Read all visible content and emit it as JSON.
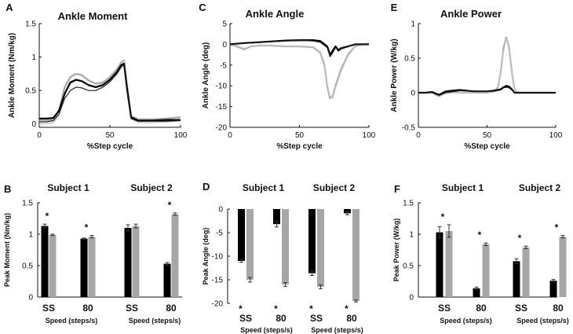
{
  "colors": {
    "black": "#000000",
    "gray": "#a6a6a6",
    "gray_light": "#c8c8c8",
    "dark": "#222222"
  },
  "chart_data": [
    {
      "panel": "A",
      "type": "line",
      "title": "Ankle Moment",
      "xlabel": "%Step cycle",
      "ylabel": "Ankle Moment (Nm/kg)",
      "xlim": [
        0,
        100
      ],
      "ylim": [
        -0.05,
        1.5
      ],
      "xticks": [
        "0",
        "50",
        "100"
      ],
      "yticks": [
        "0",
        "0.5",
        "1",
        "1.5"
      ],
      "xtick_values": [
        0,
        50,
        100
      ],
      "ytick_values": [
        0,
        0.5,
        1,
        1.5
      ],
      "series": [
        {
          "name": "s1_gray",
          "x": [
            0,
            5,
            10,
            14,
            18,
            22,
            26,
            30,
            35,
            40,
            45,
            50,
            55,
            58,
            60,
            62,
            65,
            70,
            80,
            90,
            100
          ],
          "y": [
            0.05,
            0.05,
            0.06,
            0.2,
            0.55,
            0.7,
            0.75,
            0.73,
            0.65,
            0.6,
            0.62,
            0.7,
            0.82,
            0.92,
            0.95,
            0.6,
            0.12,
            0.07,
            0.07,
            0.08,
            0.1
          ]
        },
        {
          "name": "s2_gray",
          "x": [
            0,
            5,
            10,
            14,
            18,
            22,
            26,
            30,
            35,
            40,
            45,
            50,
            55,
            58,
            60,
            62,
            65,
            70,
            80,
            90,
            100
          ],
          "y": [
            0.0,
            0.0,
            0.02,
            0.12,
            0.45,
            0.6,
            0.65,
            0.64,
            0.58,
            0.56,
            0.6,
            0.68,
            0.8,
            0.9,
            0.94,
            0.5,
            0.08,
            0.02,
            0.02,
            0.03,
            0.05
          ]
        },
        {
          "name": "s1_black",
          "x": [
            0,
            5,
            10,
            14,
            18,
            22,
            26,
            30,
            35,
            40,
            45,
            50,
            55,
            58,
            60,
            62,
            65,
            70,
            80,
            90,
            100
          ],
          "y": [
            0.08,
            0.08,
            0.09,
            0.2,
            0.45,
            0.62,
            0.66,
            0.64,
            0.58,
            0.55,
            0.58,
            0.66,
            0.78,
            0.88,
            0.9,
            0.55,
            0.1,
            0.05,
            0.05,
            0.06,
            0.06
          ]
        },
        {
          "name": "s2_black",
          "x": [
            0,
            5,
            10,
            14,
            18,
            22,
            26,
            30,
            35,
            40,
            45,
            50,
            55,
            58,
            60,
            62,
            65,
            70,
            80,
            90,
            100
          ],
          "y": [
            0.03,
            0.03,
            0.05,
            0.15,
            0.38,
            0.5,
            0.55,
            0.54,
            0.5,
            0.5,
            0.55,
            0.63,
            0.75,
            0.85,
            0.88,
            0.5,
            0.08,
            0.04,
            0.04,
            0.04,
            0.05
          ]
        }
      ]
    },
    {
      "panel": "C",
      "type": "line",
      "title": "Ankle Angle",
      "xlabel": "%Step cycle",
      "ylabel": "Ankle Angle (deg)",
      "xlim": [
        0,
        100
      ],
      "ylim": [
        -20,
        5
      ],
      "xticks": [
        "0",
        "50",
        "100"
      ],
      "yticks": [
        "5",
        "0",
        "-5",
        "-10",
        "-15",
        "-20"
      ],
      "xtick_values": [
        0,
        50,
        100
      ],
      "ytick_values": [
        5,
        0,
        -5,
        -10,
        -15,
        -20
      ],
      "series": [
        {
          "name": "s1_gray",
          "x": [
            0,
            5,
            10,
            15,
            20,
            30,
            40,
            50,
            60,
            65,
            68,
            70,
            72,
            74,
            76,
            80,
            85,
            90,
            95,
            100
          ],
          "y": [
            0,
            -0.5,
            -1.2,
            -0.5,
            -0.3,
            -0.3,
            -0.5,
            -0.5,
            -0.7,
            -2,
            -5,
            -10,
            -13,
            -12.5,
            -10,
            -6,
            -2.5,
            -0.5,
            0,
            0
          ]
        },
        {
          "name": "s2_gray",
          "x": [
            0,
            5,
            10,
            15,
            20,
            30,
            40,
            50,
            60,
            65,
            68,
            70,
            72,
            74,
            76,
            80,
            85,
            90,
            95,
            100
          ],
          "y": [
            0,
            -0.3,
            -1,
            -0.4,
            -0.2,
            -0.2,
            -0.4,
            -0.4,
            -0.6,
            -1.8,
            -4.5,
            -9.5,
            -12.5,
            -13,
            -10.5,
            -6.5,
            -2.8,
            -0.6,
            0,
            0
          ]
        },
        {
          "name": "s1_black",
          "x": [
            0,
            10,
            20,
            30,
            40,
            50,
            55,
            60,
            65,
            70,
            72,
            74,
            76,
            78,
            80,
            85,
            90,
            95,
            100
          ],
          "y": [
            0,
            0.3,
            0.5,
            0.7,
            0.9,
            1.0,
            1.0,
            1.0,
            0.8,
            -0.5,
            -2.5,
            -1.5,
            -0.5,
            -1.5,
            -1.0,
            -0.5,
            0,
            0,
            0
          ]
        },
        {
          "name": "s2_black",
          "x": [
            0,
            10,
            20,
            30,
            40,
            50,
            55,
            60,
            65,
            70,
            72,
            74,
            76,
            78,
            80,
            85,
            90,
            95,
            100
          ],
          "y": [
            0,
            0.2,
            0.4,
            0.6,
            0.8,
            0.9,
            0.9,
            0.8,
            0.5,
            -0.8,
            -3.0,
            -2.0,
            -0.8,
            -1.2,
            -0.8,
            -0.4,
            0,
            0,
            0
          ]
        }
      ]
    },
    {
      "panel": "E",
      "type": "line",
      "title": "Ankle Power",
      "xlabel": "%Step cycle",
      "ylabel": "Ankle Power (W/kg)",
      "xlim": [
        0,
        100
      ],
      "ylim": [
        -0.5,
        1
      ],
      "xticks": [
        "0",
        "50",
        "100"
      ],
      "yticks": [
        "1",
        "0.5",
        "0",
        "-0.5"
      ],
      "xtick_values": [
        0,
        50,
        100
      ],
      "ytick_values": [
        1,
        0.5,
        0,
        -0.5
      ],
      "series": [
        {
          "name": "s1_gray",
          "x": [
            0,
            5,
            10,
            12,
            15,
            18,
            20,
            25,
            30,
            40,
            50,
            55,
            58,
            60,
            62,
            64,
            66,
            68,
            70,
            72,
            80,
            100
          ],
          "y": [
            0,
            0,
            0.01,
            -0.02,
            -0.05,
            -0.02,
            0.0,
            0.01,
            0.0,
            0.0,
            0.0,
            0.02,
            0.08,
            0.3,
            0.65,
            0.8,
            0.65,
            0.3,
            0.05,
            0.0,
            0.0,
            0.0
          ]
        },
        {
          "name": "s2_gray",
          "x": [
            0,
            5,
            10,
            12,
            15,
            18,
            20,
            25,
            30,
            40,
            50,
            55,
            58,
            60,
            62,
            64,
            66,
            68,
            70,
            72,
            80,
            100
          ],
          "y": [
            0,
            0,
            0.0,
            -0.03,
            -0.06,
            -0.03,
            0.0,
            0.0,
            0.0,
            0.0,
            0.0,
            0.02,
            0.07,
            0.28,
            0.6,
            0.78,
            0.62,
            0.28,
            0.04,
            0.0,
            0.0,
            0.0
          ]
        },
        {
          "name": "s1_black",
          "x": [
            0,
            5,
            10,
            15,
            20,
            30,
            40,
            50,
            55,
            60,
            62,
            64,
            66,
            68,
            70,
            75,
            80,
            100
          ],
          "y": [
            0,
            0,
            0.01,
            -0.03,
            0.02,
            0.04,
            0.02,
            0.02,
            0.03,
            0.05,
            0.08,
            0.1,
            0.09,
            0.05,
            0.0,
            0.0,
            0.0,
            0.0
          ]
        },
        {
          "name": "s2_black",
          "x": [
            0,
            5,
            10,
            15,
            20,
            30,
            40,
            50,
            55,
            60,
            62,
            64,
            66,
            68,
            70,
            75,
            80,
            100
          ],
          "y": [
            0,
            0,
            0.0,
            -0.04,
            0.0,
            0.03,
            0.02,
            0.02,
            0.02,
            0.04,
            0.07,
            0.08,
            0.07,
            0.04,
            0.0,
            0.0,
            0.0,
            0.0
          ]
        }
      ]
    },
    {
      "panel": "B",
      "type": "bar",
      "xlabel": "Speed (steps/s)",
      "ylabel": "Peak Moment (Nm/kg)",
      "ylim": [
        0,
        1.5
      ],
      "yticks": [
        "1.5",
        "1",
        "0.5",
        "0"
      ],
      "ytick_values": [
        1.5,
        1,
        0.5,
        0
      ],
      "groups": [
        {
          "subject": "Subject 1",
          "conditions": [
            {
              "label": "SS",
              "black": 1.13,
              "black_err": 0.03,
              "gray": 0.99,
              "gray_err": 0.01,
              "star": "*"
            },
            {
              "label": "80",
              "black": 0.93,
              "black_err": 0.01,
              "gray": 0.96,
              "gray_err": 0.02,
              "star": "*"
            }
          ]
        },
        {
          "subject": "Subject 2",
          "conditions": [
            {
              "label": "SS",
              "black": 1.1,
              "black_err": 0.05,
              "gray": 1.13,
              "gray_err": 0.03,
              "star": ""
            },
            {
              "label": "80",
              "black": 0.53,
              "black_err": 0.02,
              "gray": 1.32,
              "gray_err": 0.02,
              "star": "*"
            }
          ]
        }
      ]
    },
    {
      "panel": "D",
      "type": "bar",
      "xlabel": "Speed (steps/s)",
      "ylabel": "Peak Angle (deg)",
      "ylim": [
        -20,
        0
      ],
      "yticks": [
        "0",
        "-5",
        "-10",
        "-15",
        "-20"
      ],
      "ytick_values": [
        0,
        -5,
        -10,
        -15,
        -20
      ],
      "groups": [
        {
          "subject": "Subject 1",
          "conditions": [
            {
              "label": "SS",
              "black": -11.0,
              "black_err": 0.3,
              "gray": -15.0,
              "gray_err": 0.5,
              "star": "*"
            },
            {
              "label": "80",
              "black": -3.2,
              "black_err": 0.6,
              "gray": -16.0,
              "gray_err": 0.4,
              "star": "*"
            }
          ]
        },
        {
          "subject": "Subject 2",
          "conditions": [
            {
              "label": "SS",
              "black": -13.6,
              "black_err": 0.5,
              "gray": -16.5,
              "gray_err": 0.4,
              "star": "*"
            },
            {
              "label": "80",
              "black": -0.9,
              "black_err": 0.3,
              "gray": -19.5,
              "gray_err": 0.2,
              "star": "*"
            }
          ]
        }
      ]
    },
    {
      "panel": "F",
      "type": "bar",
      "xlabel": "Speed (steps/s)",
      "ylabel": "Peak Power (W/kg)",
      "ylim": [
        0,
        1.5
      ],
      "yticks": [
        "1.5",
        "1",
        "0.5",
        "0"
      ],
      "ytick_values": [
        1.5,
        1,
        0.5,
        0
      ],
      "groups": [
        {
          "subject": "Subject 1",
          "conditions": [
            {
              "label": "SS",
              "black": 1.03,
              "black_err": 0.09,
              "gray": 1.05,
              "gray_err": 0.1,
              "star": "*"
            },
            {
              "label": "80",
              "black": 0.14,
              "black_err": 0.02,
              "gray": 0.84,
              "gray_err": 0.02,
              "star": "*"
            }
          ]
        },
        {
          "subject": "Subject 2",
          "conditions": [
            {
              "label": "SS",
              "black": 0.57,
              "black_err": 0.04,
              "gray": 0.79,
              "gray_err": 0.02,
              "star": "*"
            },
            {
              "label": "80",
              "black": 0.26,
              "black_err": 0.02,
              "gray": 0.96,
              "gray_err": 0.02,
              "star": "*"
            }
          ]
        }
      ]
    }
  ]
}
